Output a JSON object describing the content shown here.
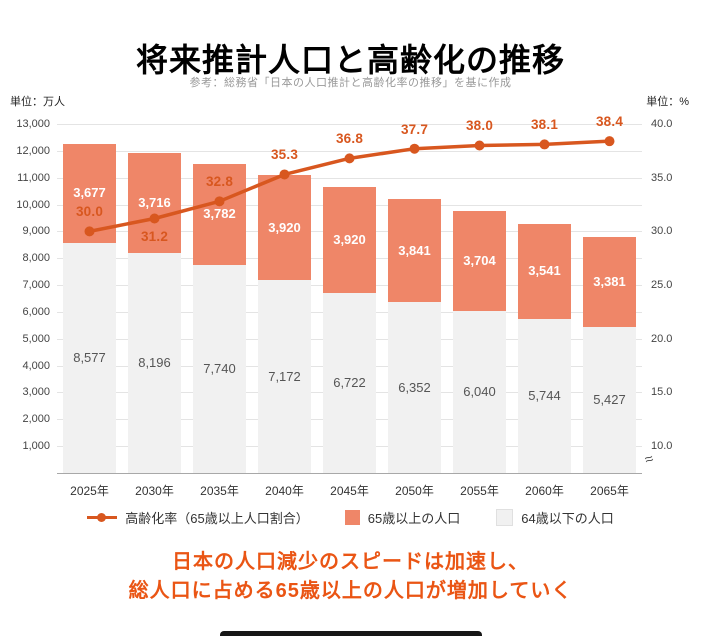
{
  "header": {
    "title": "将来推計人口と高齢化の推移",
    "subtitle": "参考：総務省「日本の人口推計と高齢化率の推移」を基に作成"
  },
  "axes": {
    "left_unit": "単位：万人",
    "right_unit": "単位：%",
    "left_ticks": [
      "13,000",
      "12,000",
      "11,000",
      "10,000",
      "9,000",
      "8,000",
      "7,000",
      "6,000",
      "5,000",
      "4,000",
      "3,000",
      "2,000",
      "1,000"
    ],
    "right_ticks": [
      "40.0",
      "35.0",
      "30.0",
      "25.0",
      "20.0",
      "15.0",
      "10.0"
    ],
    "break_symbol": "≈"
  },
  "chart_data": {
    "type": "bar",
    "stacked": true,
    "categories": [
      "2025年",
      "2030年",
      "2035年",
      "2040年",
      "2045年",
      "2050年",
      "2055年",
      "2060年",
      "2065年"
    ],
    "series": [
      {
        "name": "64歳以下の人口",
        "values": [
          8577,
          8196,
          7740,
          7172,
          6722,
          6352,
          6040,
          5744,
          5427
        ],
        "color": "#f1f1f1",
        "label_color": "#555"
      },
      {
        "name": "65歳以上の人口",
        "values": [
          3677,
          3716,
          3782,
          3920,
          3920,
          3841,
          3704,
          3541,
          3381
        ],
        "color": "#ef8668",
        "label_color": "#ffffff"
      }
    ],
    "line_series": {
      "name": "高齢化率（65歳以上人口割合）",
      "values": [
        30.0,
        31.2,
        32.8,
        35.3,
        36.8,
        37.7,
        38.0,
        38.1,
        38.4
      ],
      "color": "#d8571f",
      "axis": "right",
      "label_below": [
        false,
        true,
        false,
        false,
        false,
        false,
        false,
        false,
        false
      ]
    },
    "left_axis": {
      "min": 0,
      "max": 13000,
      "grid_step": 1000
    },
    "right_axis": {
      "min": 10,
      "max": 40,
      "left_min_equiv": 1000,
      "left_max_equiv": 13000
    },
    "legend_position": "bottom",
    "grid": true
  },
  "legend": {
    "items": [
      {
        "label": "高齢化率（65歳以上人口割合）",
        "swatch": "line-dot",
        "color": "#d8571f"
      },
      {
        "label": "65歳以上の人口",
        "swatch": "square",
        "color": "#ef8668"
      },
      {
        "label": "64歳以下の人口",
        "swatch": "square",
        "color": "#f1f1f1",
        "border": "#e0e0e0"
      }
    ]
  },
  "message": {
    "lines": [
      "日本の人口減少のスピードは加速し、",
      "総人口に占める65歳以上の人口が増加していく"
    ],
    "color": "#ea5514"
  }
}
